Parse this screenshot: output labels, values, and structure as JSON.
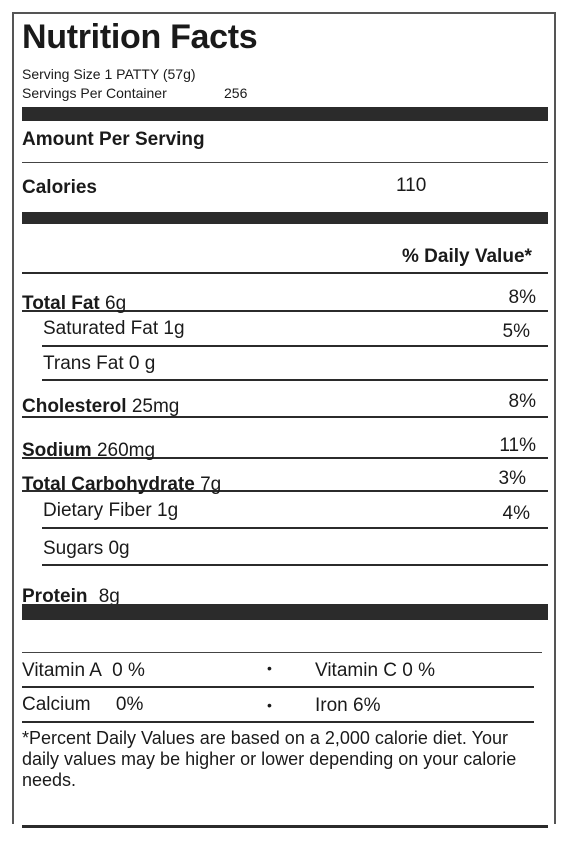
{
  "title": "Nutrition Facts",
  "serving_size": "Serving Size 1 PATTY (57g)",
  "servings_label": "Servings Per Container",
  "servings_value": "256",
  "amount_per_serving": "Amount Per Serving",
  "calories_label": "Calories",
  "calories_value": "110",
  "daily_value_header": "% Daily Value*",
  "nutrients": {
    "total_fat": {
      "name": "Total Fat",
      "amount": "6g",
      "dv": "8%"
    },
    "saturated_fat": {
      "name": "Saturated Fat",
      "amount": "1g",
      "dv": "5%"
    },
    "trans_fat": {
      "name": "Trans Fat",
      "amount": "0 g"
    },
    "cholesterol": {
      "name": "Cholesterol",
      "amount": "25mg",
      "dv": "8%"
    },
    "sodium": {
      "name": "Sodium",
      "amount": "260mg",
      "dv": "11%"
    },
    "total_carb": {
      "name": "Total Carbohydrate",
      "amount": "7g",
      "dv": "3%"
    },
    "dietary_fiber": {
      "name": "Dietary Fiber",
      "amount": "1g",
      "dv": "4%"
    },
    "sugars": {
      "name": "Sugars",
      "amount": "0g"
    },
    "protein": {
      "name": "Protein",
      "amount": "8g"
    }
  },
  "vitamins": {
    "vitamin_a": {
      "name": "Vitamin A",
      "value": "0 %"
    },
    "vitamin_c": {
      "name": "Vitamin C",
      "value": "0 %"
    },
    "calcium": {
      "name": "Calcium",
      "value": "0%"
    },
    "iron": {
      "name": "Iron",
      "value": "6%"
    },
    "bullet": "•"
  },
  "footnote": "*Percent Daily Values are based on a 2,000 calorie diet. Your daily values may be higher or lower depending on your calorie needs."
}
